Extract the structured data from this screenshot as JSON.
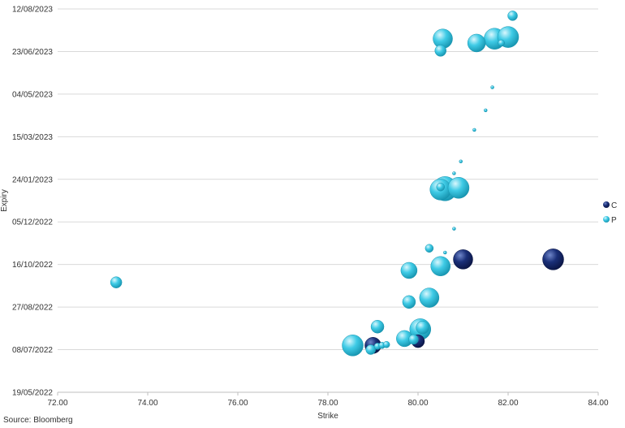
{
  "chart_data": {
    "type": "scatter",
    "subtype": "bubble",
    "title": "",
    "xlabel": "Strike",
    "ylabel": "Expiry",
    "xlim": [
      72,
      84
    ],
    "x_ticks": [
      "72.00",
      "74.00",
      "76.00",
      "78.00",
      "80.00",
      "82.00",
      "84.00"
    ],
    "y_ticks": [
      "19/05/2022",
      "08/07/2022",
      "27/08/2022",
      "16/10/2022",
      "05/12/2022",
      "24/01/2023",
      "15/03/2023",
      "04/05/2023",
      "23/06/2023",
      "12/08/2023"
    ],
    "ylim": [
      "19/05/2022",
      "12/08/2023"
    ],
    "grid": "horizontal",
    "legend_position": "right",
    "colors": {
      "C": "#12235e",
      "P": "#2bc0dc"
    },
    "series": [
      {
        "name": "C",
        "points": [
          {
            "x": 81.0,
            "y": "2022-10-22",
            "size": 12
          },
          {
            "x": 83.0,
            "y": "2022-10-22",
            "size": 13
          },
          {
            "x": 79.0,
            "y": "2022-07-13",
            "size": 10
          },
          {
            "x": 80.0,
            "y": "2022-07-18",
            "size": 8
          }
        ]
      },
      {
        "name": "P",
        "points": [
          {
            "x": 73.3,
            "y": "2022-09-25",
            "size": 7
          },
          {
            "x": 78.55,
            "y": "2022-07-13",
            "size": 13
          },
          {
            "x": 78.95,
            "y": "2022-07-08",
            "size": 6
          },
          {
            "x": 79.1,
            "y": "2022-07-12",
            "size": 4
          },
          {
            "x": 79.2,
            "y": "2022-07-13",
            "size": 4
          },
          {
            "x": 79.3,
            "y": "2022-07-14",
            "size": 4
          },
          {
            "x": 79.1,
            "y": "2022-08-04",
            "size": 8
          },
          {
            "x": 79.7,
            "y": "2022-07-21",
            "size": 10
          },
          {
            "x": 79.9,
            "y": "2022-07-20",
            "size": 6
          },
          {
            "x": 80.05,
            "y": "2022-08-01",
            "size": 13
          },
          {
            "x": 80.1,
            "y": "2022-08-03",
            "size": 8
          },
          {
            "x": 79.8,
            "y": "2022-09-02",
            "size": 8
          },
          {
            "x": 80.25,
            "y": "2022-09-07",
            "size": 12
          },
          {
            "x": 79.8,
            "y": "2022-10-09",
            "size": 10
          },
          {
            "x": 80.5,
            "y": "2022-10-14",
            "size": 12
          },
          {
            "x": 80.25,
            "y": "2022-11-04",
            "size": 5
          },
          {
            "x": 80.6,
            "y": "2022-10-30",
            "size": 2
          },
          {
            "x": 80.8,
            "y": "2022-11-27",
            "size": 2
          },
          {
            "x": 80.5,
            "y": "2023-01-12",
            "size": 13
          },
          {
            "x": 80.6,
            "y": "2023-01-13",
            "size": 15
          },
          {
            "x": 80.9,
            "y": "2023-01-14",
            "size": 13
          },
          {
            "x": 80.5,
            "y": "2023-01-15",
            "size": 5
          },
          {
            "x": 80.8,
            "y": "2023-01-31",
            "size": 2
          },
          {
            "x": 80.95,
            "y": "2023-02-14",
            "size": 2
          },
          {
            "x": 81.25,
            "y": "2023-03-23",
            "size": 2
          },
          {
            "x": 81.5,
            "y": "2023-04-15",
            "size": 2
          },
          {
            "x": 81.65,
            "y": "2023-05-12",
            "size": 2
          },
          {
            "x": 80.55,
            "y": "2023-07-08",
            "size": 12
          },
          {
            "x": 80.5,
            "y": "2023-06-24",
            "size": 7
          },
          {
            "x": 81.3,
            "y": "2023-07-03",
            "size": 11
          },
          {
            "x": 81.7,
            "y": "2023-07-08",
            "size": 13
          },
          {
            "x": 81.85,
            "y": "2023-07-03",
            "size": 4
          },
          {
            "x": 82.0,
            "y": "2023-07-10",
            "size": 13
          },
          {
            "x": 82.1,
            "y": "2023-08-04",
            "size": 6
          }
        ]
      }
    ]
  },
  "footer": {
    "source": "Source: Bloomberg"
  }
}
